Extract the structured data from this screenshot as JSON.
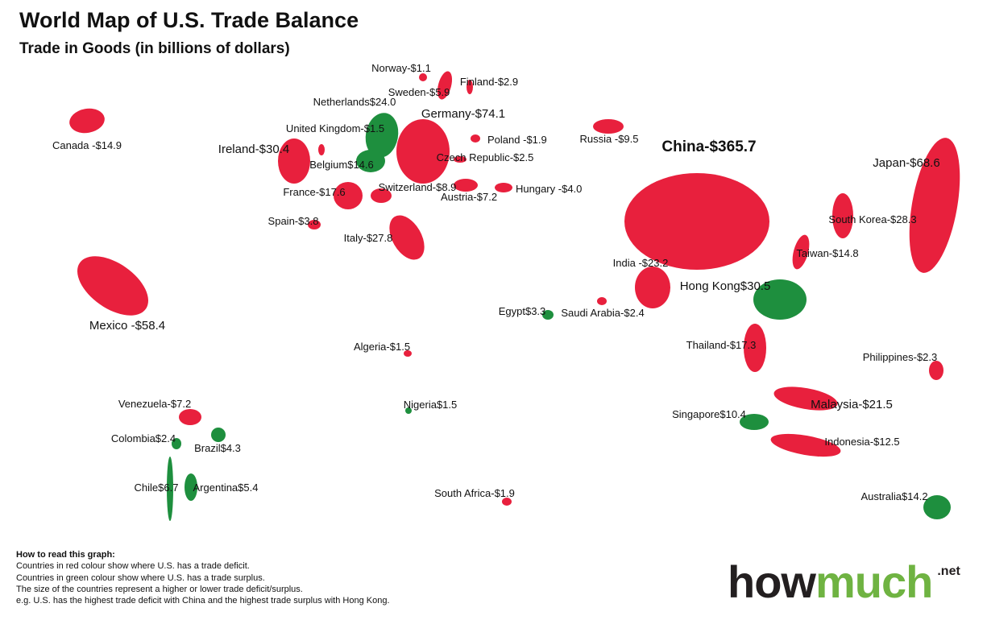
{
  "title": "World Map of U.S. Trade Balance",
  "subtitle": "Trade in Goods (in billions of dollars)",
  "colors": {
    "deficit": "#e8203d",
    "surplus": "#1e8f3e",
    "brand_dark": "#231f20",
    "brand_green": "#6fb342"
  },
  "countries": [
    {
      "name": "Canada",
      "value": "-$14.9",
      "balance": -14.9
    },
    {
      "name": "Mexico",
      "value": "-$58.4",
      "balance": -58.4
    },
    {
      "name": "Ireland",
      "value": "-$30.4",
      "balance": -30.4
    },
    {
      "name": "Netherlands",
      "value": "$24.0",
      "balance": 24.0
    },
    {
      "name": "United Kingdom",
      "value": "-$1.5",
      "balance": -1.5
    },
    {
      "name": "Belgium",
      "value": "$14.6",
      "balance": 14.6
    },
    {
      "name": "France",
      "value": "-$17.6",
      "balance": -17.6
    },
    {
      "name": "Spain",
      "value": "-$3.8",
      "balance": -3.8
    },
    {
      "name": "Switzerland",
      "value": "-$8.9",
      "balance": -8.9
    },
    {
      "name": "Italy",
      "value": "-$27.8",
      "balance": -27.8
    },
    {
      "name": "Germany",
      "value": "-$74.1",
      "balance": -74.1
    },
    {
      "name": "Norway",
      "value": "-$1.1",
      "balance": -1.1
    },
    {
      "name": "Sweden",
      "value": "-$5.9",
      "balance": -5.9
    },
    {
      "name": "Finland",
      "value": "-$2.9",
      "balance": -2.9
    },
    {
      "name": "Poland",
      "value": "-$1.9",
      "balance": -1.9
    },
    {
      "name": "Czech Republic",
      "value": "-$2.5",
      "balance": -2.5
    },
    {
      "name": "Austria",
      "value": "-$7.2",
      "balance": -7.2
    },
    {
      "name": "Hungary",
      "value": "-$4.0",
      "balance": -4.0
    },
    {
      "name": "Russia",
      "value": "-$9.5",
      "balance": -9.5
    },
    {
      "name": "China",
      "value": "-$365.7",
      "balance": -365.7
    },
    {
      "name": "Japan",
      "value": "-$68.6",
      "balance": -68.6
    },
    {
      "name": "South Korea",
      "value": "-$28.3",
      "balance": -28.3
    },
    {
      "name": "Taiwan",
      "value": "-$14.8",
      "balance": -14.8
    },
    {
      "name": "Hong Kong",
      "value": "$30.5",
      "balance": 30.5
    },
    {
      "name": "India",
      "value": "-$23.2",
      "balance": -23.2
    },
    {
      "name": "Egypt",
      "value": "$3.3",
      "balance": 3.3
    },
    {
      "name": "Saudi Arabia",
      "value": "-$2.4",
      "balance": -2.4
    },
    {
      "name": "Algeria",
      "value": "-$1.5",
      "balance": -1.5
    },
    {
      "name": "Nigeria",
      "value": "$1.5",
      "balance": 1.5
    },
    {
      "name": "South Africa",
      "value": "-$1.9",
      "balance": -1.9
    },
    {
      "name": "Thailand",
      "value": "-$17.3",
      "balance": -17.3
    },
    {
      "name": "Philippines",
      "value": "-$2.3",
      "balance": -2.3
    },
    {
      "name": "Malaysia",
      "value": "-$21.5",
      "balance": -21.5
    },
    {
      "name": "Singapore",
      "value": "$10.4",
      "balance": 10.4
    },
    {
      "name": "Indonesia",
      "value": "-$12.5",
      "balance": -12.5
    },
    {
      "name": "Australia",
      "value": "$14.2",
      "balance": 14.2
    },
    {
      "name": "Venezuela",
      "value": "-$7.2",
      "balance": -7.2
    },
    {
      "name": "Colombia",
      "value": "$2.4",
      "balance": 2.4
    },
    {
      "name": "Brazil",
      "value": "$4.3",
      "balance": 4.3
    },
    {
      "name": "Chile",
      "value": "$6.7",
      "balance": 6.7
    },
    {
      "name": "Argentina",
      "value": "$5.4",
      "balance": 5.4
    }
  ],
  "how_to_read": {
    "heading": "How to read this graph:",
    "lines": [
      "Countries in red colour show where U.S. has a trade deficit.",
      "Countries in green colour show where U.S. has a trade surplus.",
      "The size of the countries represent a higher or lower trade deficit/surplus.",
      "e.g. U.S. has the highest trade deficit with China and the highest trade surplus with Hong Kong."
    ]
  },
  "logo": {
    "part1": "how",
    "part2": "much",
    "part3": ".net"
  }
}
